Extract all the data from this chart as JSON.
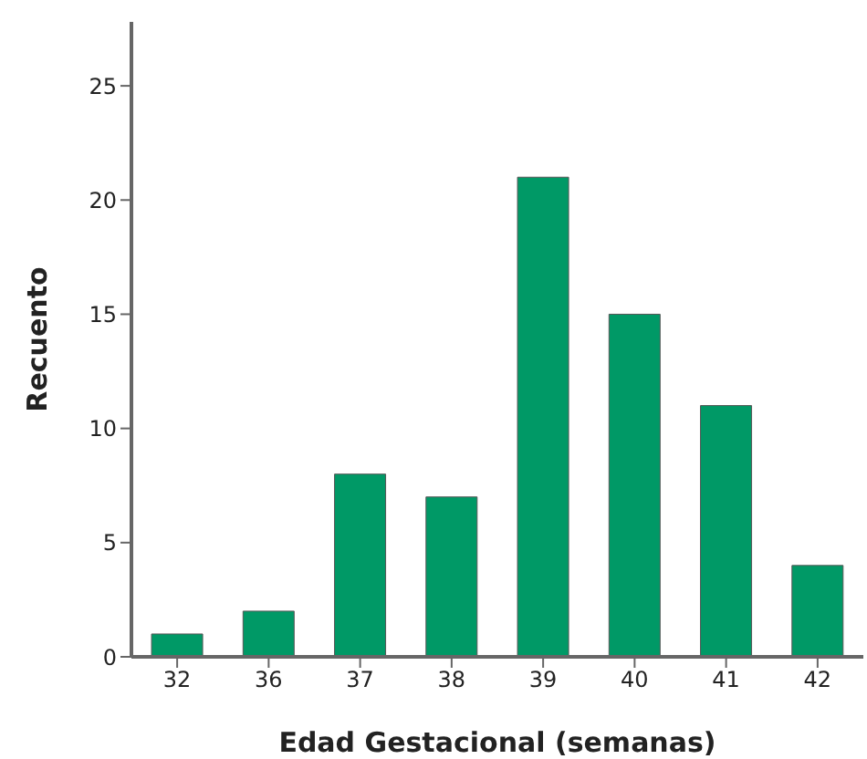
{
  "chart_data": {
    "type": "bar",
    "xlabel": "Edad Gestacional (semanas)",
    "ylabel": "Recuento",
    "categories": [
      "32",
      "36",
      "37",
      "38",
      "39",
      "40",
      "41",
      "42"
    ],
    "values": [
      1,
      2,
      8,
      7,
      21,
      15,
      11,
      4
    ],
    "color": "#009966",
    "ylim": [
      0,
      27.8
    ],
    "yticks": [
      0,
      5,
      10,
      15,
      20,
      25
    ],
    "grid": false
  }
}
